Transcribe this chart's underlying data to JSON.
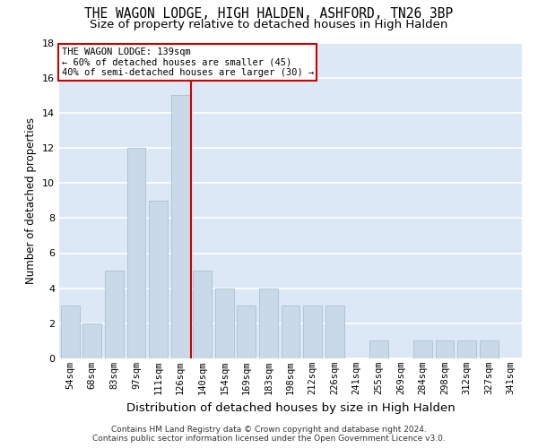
{
  "title": "THE WAGON LODGE, HIGH HALDEN, ASHFORD, TN26 3BP",
  "subtitle": "Size of property relative to detached houses in High Halden",
  "xlabel": "Distribution of detached houses by size in High Halden",
  "ylabel": "Number of detached properties",
  "categories": [
    "54sqm",
    "68sqm",
    "83sqm",
    "97sqm",
    "111sqm",
    "126sqm",
    "140sqm",
    "154sqm",
    "169sqm",
    "183sqm",
    "198sqm",
    "212sqm",
    "226sqm",
    "241sqm",
    "255sqm",
    "269sqm",
    "284sqm",
    "298sqm",
    "312sqm",
    "327sqm",
    "341sqm"
  ],
  "values": [
    3,
    2,
    5,
    12,
    9,
    15,
    5,
    4,
    3,
    4,
    3,
    3,
    3,
    0,
    1,
    0,
    1,
    1,
    1,
    1,
    0
  ],
  "bar_color": "#c9d9e8",
  "bar_edgecolor": "#a8bfd4",
  "vline_x": 5.5,
  "vline_color": "#cc0000",
  "annotation_line1": "THE WAGON LODGE: 139sqm",
  "annotation_line2": "← 60% of detached houses are smaller (45)",
  "annotation_line3": "40% of semi-detached houses are larger (30) →",
  "annotation_box_color": "#cc0000",
  "ylim": [
    0,
    18
  ],
  "yticks": [
    0,
    2,
    4,
    6,
    8,
    10,
    12,
    14,
    16,
    18
  ],
  "background_color": "#dce8f5",
  "footer1": "Contains HM Land Registry data © Crown copyright and database right 2024.",
  "footer2": "Contains public sector information licensed under the Open Government Licence v3.0.",
  "title_fontsize": 10.5,
  "subtitle_fontsize": 9.5,
  "xlabel_fontsize": 9.5,
  "ylabel_fontsize": 8.5,
  "tick_fontsize": 7.5,
  "annotation_fontsize": 7.5,
  "footer_fontsize": 6.5
}
